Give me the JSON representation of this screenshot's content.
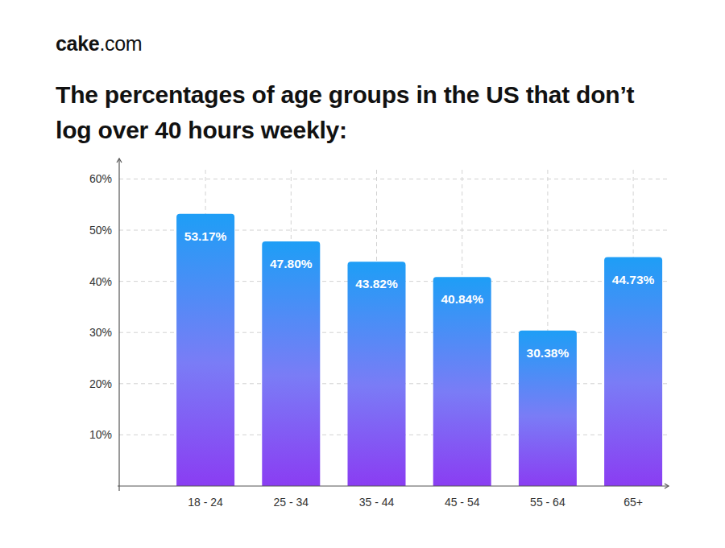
{
  "chart_data": {
    "type": "bar",
    "title": "The percentages of age groups in the US that don’t log over 40 hours weekly:",
    "annotations": [
      "cake.com"
    ],
    "categories": [
      "18 - 24",
      "25 - 34",
      "35 - 44",
      "45 - 54",
      "55 - 64",
      "65+"
    ],
    "values": [
      53.17,
      47.8,
      43.82,
      40.84,
      30.38,
      44.73
    ],
    "value_labels": [
      "53.17%",
      "47.80%",
      "43.82%",
      "40.84%",
      "30.38%",
      "44.73%"
    ],
    "data_labels": true,
    "color": "#1e9ef6",
    "ylim": [
      0,
      64
    ],
    "yticks": [
      {
        "value": 10,
        "label": "10%"
      },
      {
        "value": 20,
        "label": "20%"
      },
      {
        "value": 30,
        "label": "30%"
      },
      {
        "value": 40,
        "label": "40%"
      },
      {
        "value": 50,
        "label": "50%"
      },
      {
        "value": 60,
        "label": "60%"
      }
    ],
    "grid": true
  }
}
